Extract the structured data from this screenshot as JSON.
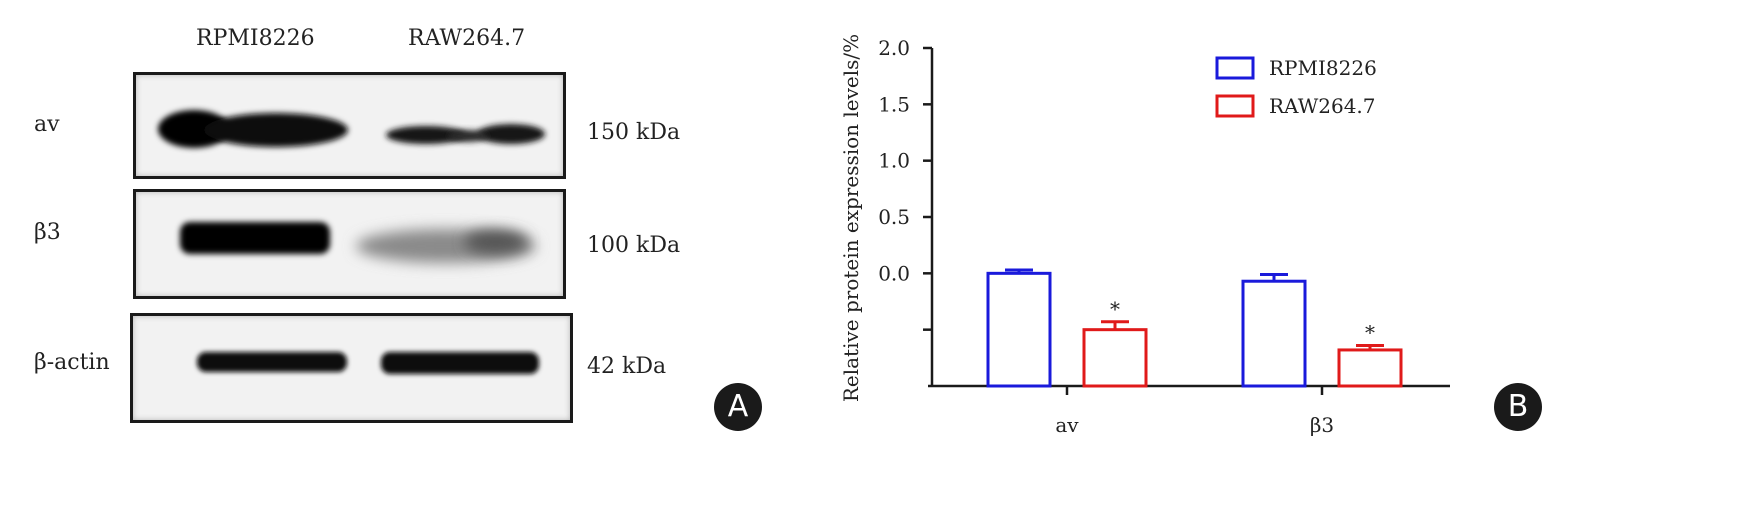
{
  "panel_a": {
    "badge": "A",
    "lanes": [
      "RPMI8226",
      "RAW264.7"
    ],
    "rows": [
      {
        "label": "av",
        "size": "150 kDa"
      },
      {
        "label": "β3",
        "size": "100 kDa"
      },
      {
        "label": "β-actin",
        "size": "42 kDa"
      }
    ]
  },
  "panel_b": {
    "badge": "B"
  },
  "chart_data": {
    "type": "bar",
    "title": "",
    "xlabel": "",
    "ylabel": "Relative protein expression levels/%",
    "categories": [
      "av",
      "β3"
    ],
    "ytick_labels": [
      "2.0",
      "1.5",
      "1.0",
      "0.5",
      "0.0"
    ],
    "ylim": [
      -1.0,
      2.0
    ],
    "series": [
      {
        "name": "RPMI8226",
        "color": "#1a1adb",
        "values": [
          0.0,
          -0.07
        ],
        "errors": [
          0.03,
          0.06
        ]
      },
      {
        "name": "RAW264.7",
        "color": "#e01a1a",
        "values": [
          -0.5,
          -0.68
        ],
        "errors": [
          0.07,
          0.04
        ]
      }
    ],
    "annotations": [
      {
        "text": "*",
        "category": "av",
        "series": "RAW264.7"
      },
      {
        "text": "*",
        "category": "β3",
        "series": "RAW264.7"
      }
    ],
    "legend": "top-right",
    "grid": false
  }
}
